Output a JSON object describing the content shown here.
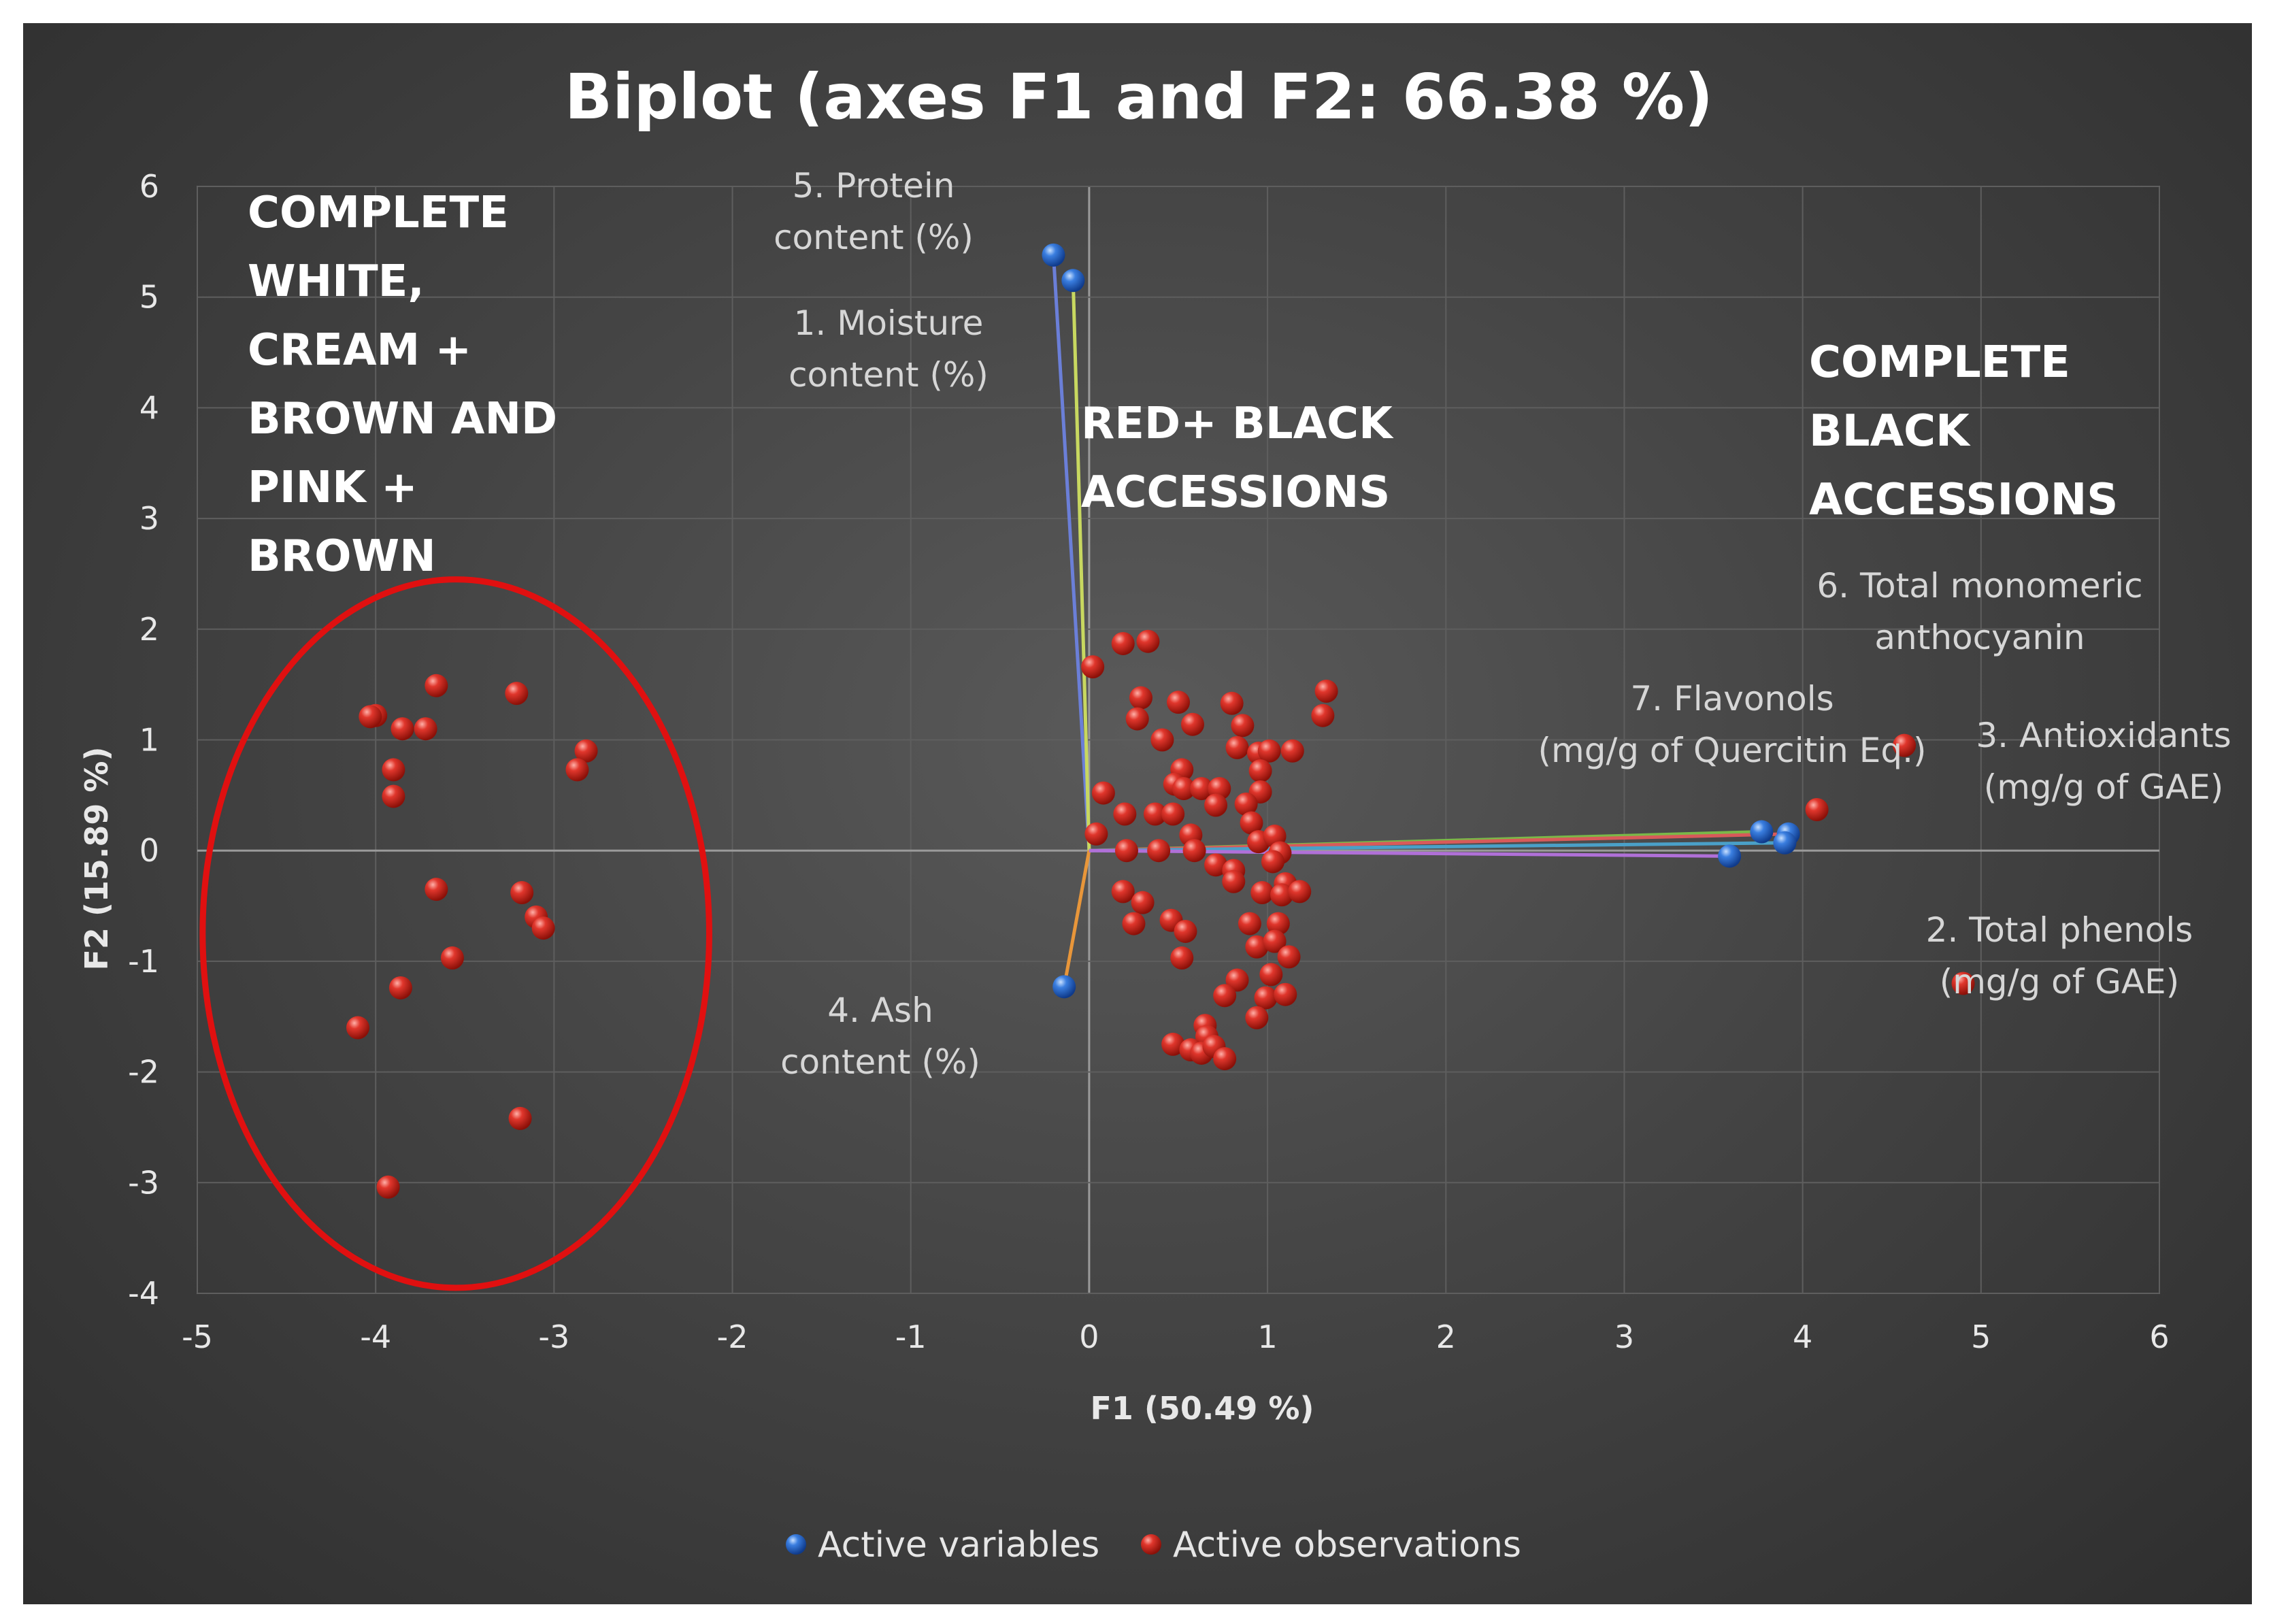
{
  "chart_data": {
    "type": "scatter",
    "title": "Biplot (axes F1 and F2: 66.38 %)",
    "xlabel": "F1 (50.49 %)",
    "ylabel": "F2 (15.89 %)",
    "xlim": [
      -5,
      6
    ],
    "ylim": [
      -4,
      6
    ],
    "x_ticks": [
      "-5",
      "-4",
      "-3",
      "-2",
      "-1",
      "0",
      "1",
      "2",
      "3",
      "4",
      "5",
      "6"
    ],
    "y_ticks": [
      "6",
      "5",
      "4",
      "3",
      "2",
      "1",
      "0",
      "-1",
      "-2",
      "-3",
      "-4"
    ],
    "grid": true,
    "legend": {
      "position": "bottom",
      "entries": [
        "Active variables",
        "Active observations"
      ]
    },
    "colors": {
      "variables": "#2f6fd6",
      "observations": "#d62a20",
      "ellipse": "#e01010",
      "arrow_protein": "#6b7fd8",
      "arrow_moisture": "#c8d860",
      "arrow_ash": "#e8963a",
      "arrow_antioxidants": "#4aa0c8",
      "arrow_phenols": "#b070d8",
      "arrow_anthocyanin": "#7ab848",
      "arrow_flavonols": "#d85a5a"
    },
    "group_labels": [
      {
        "lines": [
          "COMPLETE",
          "WHITE,",
          "CREAM +",
          "BROWN AND",
          "PINK +",
          "BROWN"
        ]
      },
      {
        "lines": [
          "RED+ BLACK",
          "ACCESSIONS"
        ]
      },
      {
        "lines": [
          "COMPLETE",
          "BLACK",
          "ACCESSIONS"
        ]
      }
    ],
    "variables": [
      {
        "name": "5. Protein content (%)",
        "lines": [
          "5. Protein",
          "content (%)"
        ],
        "x": -0.2,
        "y": 5.38,
        "color_key": "arrow_protein"
      },
      {
        "name": "1. Moisture content (%)",
        "lines": [
          "1. Moisture",
          "content (%)"
        ],
        "x": -0.09,
        "y": 5.15,
        "color_key": "arrow_moisture"
      },
      {
        "name": "4. Ash content (%)",
        "lines": [
          "4. Ash",
          "content (%)"
        ],
        "x": -0.14,
        "y": -1.23,
        "color_key": "arrow_ash"
      },
      {
        "name": "6. Total monomeric anthocyanin",
        "lines": [
          "6. Total monomeric",
          "anthocyanin"
        ],
        "x": 3.77,
        "y": 0.17,
        "color_key": "arrow_anthocyanin"
      },
      {
        "name": "7. Flavonols (mg/g of Quercitin Eq.)",
        "lines": [
          "7. Flavonols",
          "(mg/g of Quercitin Eq.)"
        ],
        "x": 3.92,
        "y": 0.15,
        "color_key": "arrow_flavonols"
      },
      {
        "name": "3. Antioxidants (mg/g of GAE)",
        "lines": [
          "3. Antioxidants",
          "(mg/g of GAE)"
        ],
        "x": 3.9,
        "y": 0.07,
        "color_key": "arrow_antioxidants"
      },
      {
        "name": "2. Total phenols (mg/g of GAE)",
        "lines": [
          "2. Total phenols",
          "(mg/g of GAE)"
        ],
        "x": 3.59,
        "y": -0.05,
        "color_key": "arrow_phenols"
      }
    ],
    "observations": [
      [
        -4.0,
        1.22
      ],
      [
        -4.03,
        1.21
      ],
      [
        -3.66,
        1.49
      ],
      [
        -3.21,
        1.42
      ],
      [
        -3.85,
        1.1
      ],
      [
        -3.72,
        1.1
      ],
      [
        -2.82,
        0.9
      ],
      [
        -2.87,
        0.73
      ],
      [
        -3.9,
        0.73
      ],
      [
        -3.9,
        0.49
      ],
      [
        -3.66,
        -0.35
      ],
      [
        -3.18,
        -0.38
      ],
      [
        -3.1,
        -0.6
      ],
      [
        -3.06,
        -0.7
      ],
      [
        -3.57,
        -0.97
      ],
      [
        -3.86,
        -1.24
      ],
      [
        -4.1,
        -1.6
      ],
      [
        -3.19,
        -2.42
      ],
      [
        -3.93,
        -3.04
      ],
      [
        0.02,
        1.66
      ],
      [
        0.19,
        1.87
      ],
      [
        0.33,
        1.89
      ],
      [
        0.29,
        1.38
      ],
      [
        0.27,
        1.19
      ],
      [
        0.5,
        1.34
      ],
      [
        0.58,
        1.14
      ],
      [
        0.41,
        1.0
      ],
      [
        0.8,
        1.33
      ],
      [
        0.86,
        1.13
      ],
      [
        0.83,
        0.93
      ],
      [
        0.95,
        0.88
      ],
      [
        1.01,
        0.9
      ],
      [
        1.14,
        0.9
      ],
      [
        1.33,
        1.44
      ],
      [
        1.31,
        1.22
      ],
      [
        0.52,
        0.73
      ],
      [
        0.48,
        0.6
      ],
      [
        0.53,
        0.56
      ],
      [
        0.63,
        0.56
      ],
      [
        0.73,
        0.56
      ],
      [
        0.96,
        0.72
      ],
      [
        0.96,
        0.53
      ],
      [
        0.08,
        0.52
      ],
      [
        0.2,
        0.33
      ],
      [
        0.37,
        0.33
      ],
      [
        0.47,
        0.33
      ],
      [
        0.71,
        0.41
      ],
      [
        0.88,
        0.42
      ],
      [
        0.91,
        0.25
      ],
      [
        0.04,
        0.15
      ],
      [
        0.21,
        0.0
      ],
      [
        0.39,
        0.0
      ],
      [
        0.57,
        0.14
      ],
      [
        0.59,
        0.0
      ],
      [
        0.95,
        0.08
      ],
      [
        1.04,
        0.13
      ],
      [
        1.07,
        -0.02
      ],
      [
        0.71,
        -0.13
      ],
      [
        0.81,
        -0.18
      ],
      [
        0.81,
        -0.28
      ],
      [
        1.03,
        -0.1
      ],
      [
        1.1,
        -0.3
      ],
      [
        0.97,
        -0.38
      ],
      [
        1.08,
        -0.4
      ],
      [
        1.18,
        -0.37
      ],
      [
        0.19,
        -0.37
      ],
      [
        0.3,
        -0.47
      ],
      [
        0.46,
        -0.63
      ],
      [
        0.25,
        -0.66
      ],
      [
        0.54,
        -0.73
      ],
      [
        0.9,
        -0.66
      ],
      [
        1.06,
        -0.66
      ],
      [
        0.94,
        -0.87
      ],
      [
        1.04,
        -0.82
      ],
      [
        1.12,
        -0.96
      ],
      [
        0.52,
        -0.97
      ],
      [
        0.83,
        -1.17
      ],
      [
        1.02,
        -1.12
      ],
      [
        0.76,
        -1.31
      ],
      [
        0.99,
        -1.33
      ],
      [
        1.1,
        -1.3
      ],
      [
        0.94,
        -1.51
      ],
      [
        0.65,
        -1.58
      ],
      [
        0.66,
        -1.68
      ],
      [
        0.47,
        -1.75
      ],
      [
        0.57,
        -1.8
      ],
      [
        0.63,
        -1.83
      ],
      [
        0.7,
        -1.77
      ],
      [
        0.76,
        -1.88
      ],
      [
        4.08,
        0.37
      ],
      [
        4.57,
        0.95
      ],
      [
        4.9,
        -1.2
      ]
    ],
    "ellipse": {
      "cx": -3.55,
      "cy": -0.75,
      "rx": 1.42,
      "ry": 3.2
    }
  }
}
